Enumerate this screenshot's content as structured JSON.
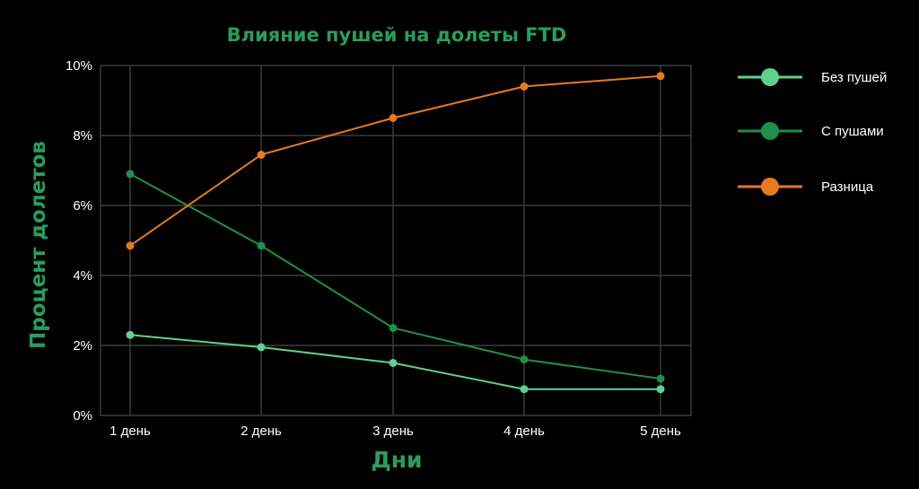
{
  "chart_data": {
    "type": "line",
    "title": "Влияние пушей на долеты FTD",
    "xlabel": "Дни",
    "ylabel": "Процент долетов",
    "categories": [
      "1 день",
      "2 день",
      "3 день",
      "4 день",
      "5 день"
    ],
    "y_ticks": [
      "0%",
      "2%",
      "4%",
      "6%",
      "8%",
      "10%"
    ],
    "y_tick_values": [
      0,
      2,
      4,
      6,
      8,
      10
    ],
    "ylim": [
      0,
      10
    ],
    "grid": true,
    "legend_position": "right",
    "series": [
      {
        "name": "Без пушей",
        "color": "#5fd08d",
        "values": [
          2.3,
          1.95,
          1.5,
          0.75,
          0.75
        ]
      },
      {
        "name": "С пушами",
        "color": "#1f8f4a",
        "values": [
          6.9,
          4.85,
          2.5,
          1.6,
          1.05
        ]
      },
      {
        "name": "Разница",
        "color": "#e57a1f",
        "values": [
          4.85,
          7.45,
          8.5,
          9.4,
          9.7
        ]
      }
    ],
    "colors": {
      "title": "#2a9d5c",
      "axis_title": "#2a9d5c",
      "grid": "#3a3a3a",
      "text": "#ffffff",
      "background": "#000000"
    }
  }
}
